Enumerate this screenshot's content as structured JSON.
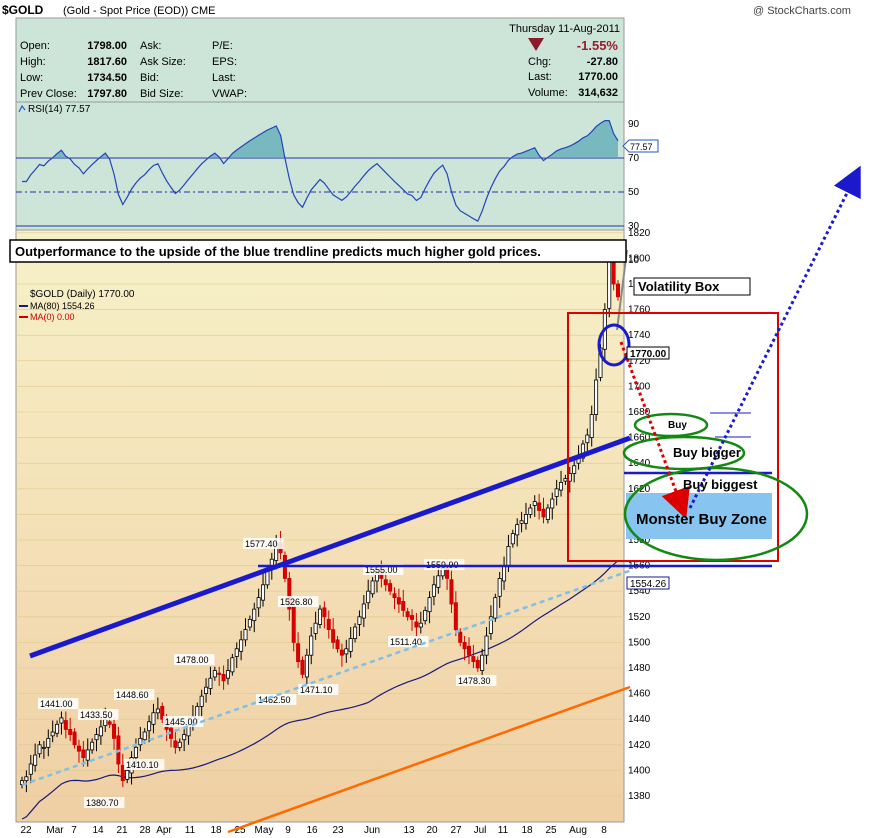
{
  "header": {
    "symbol": "$GOLD",
    "description": "(Gold - Spot Price (EOD))",
    "exchange": "CME",
    "brand": "@ StockCharts.com",
    "date": "Thursday  11-Aug-2011",
    "change_pct": "-1.55%",
    "chg_label": "Chg:",
    "chg_value": "-27.80",
    "last_label": "Last:",
    "last_value": "1770.00",
    "volume_label": "Volume:",
    "volume_value": "314,632"
  },
  "quote": [
    {
      "label": "Open:",
      "value": "1798.00"
    },
    {
      "label": "High:",
      "value": "1817.60"
    },
    {
      "label": "Low:",
      "value": "1734.50"
    },
    {
      "label": "Prev Close:",
      "value": "1797.80"
    }
  ],
  "quote_mid": [
    "Ask:",
    "Ask Size:",
    "Bid:",
    "Bid Size:"
  ],
  "quote_right": [
    "P/E:",
    "EPS:",
    "Last:",
    "VWAP:"
  ],
  "rsi": {
    "label": "RSI(14) 77.57",
    "value_tag": "77.57",
    "ticks": [
      "90",
      "70",
      "50",
      "30",
      "10"
    ]
  },
  "price_legend": {
    "main": "$GOLD (Daily) 1770.00",
    "ma80": "MA(80) 1554.26",
    "ma0": "MA(0) 0.00"
  },
  "price_ticks": [
    "1820",
    "1800",
    "1780",
    "1760",
    "1740",
    "1720",
    "1700",
    "1680",
    "1660",
    "1640",
    "1620",
    "1600",
    "1580",
    "1560",
    "1540",
    "1520",
    "1500",
    "1480",
    "1460",
    "1440",
    "1420",
    "1400",
    "1380"
  ],
  "x_labels": [
    "22",
    "Mar",
    "7",
    "14",
    "21",
    "28",
    "Apr",
    "11",
    "18",
    "25",
    "May",
    "9",
    "16",
    "23",
    "Jun",
    "13",
    "20",
    "27",
    "Jul",
    "11",
    "18",
    "25",
    "Aug",
    "8"
  ],
  "annotations": {
    "headline": "Outperformance to the upside of the blue trendline predicts much higher gold prices.",
    "volatility_box": "Volatility Box",
    "buy": "Buy",
    "buy_bigger": "Buy bigger",
    "buy_biggest": "Buy biggest",
    "monster": "Monster Buy Zone",
    "last_price_tag": "1770.00",
    "ma_tag": "1554.26"
  },
  "chart_data": {
    "type": "candlestick",
    "title": "$GOLD (Gold - Spot Price (EOD))",
    "ylim": [
      1370,
      1830
    ],
    "price_labels": [
      {
        "text": "1441.00",
        "value": 1441.0
      },
      {
        "text": "1433.50",
        "value": 1433.5
      },
      {
        "text": "1448.60",
        "value": 1448.6
      },
      {
        "text": "1380.70",
        "value": 1380.7
      },
      {
        "text": "1410.10",
        "value": 1410.1
      },
      {
        "text": "1445.00",
        "value": 1445.0
      },
      {
        "text": "1478.00",
        "value": 1478.0
      },
      {
        "text": "1577.40",
        "value": 1577.4
      },
      {
        "text": "1526.80",
        "value": 1526.8
      },
      {
        "text": "1462.50",
        "value": 1462.5
      },
      {
        "text": "1471.10",
        "value": 1471.1
      },
      {
        "text": "1555.00",
        "value": 1555.0
      },
      {
        "text": "1511.40",
        "value": 1511.4
      },
      {
        "text": "1559.90",
        "value": 1559.9
      },
      {
        "text": "1478.30",
        "value": 1478.3
      }
    ],
    "series": [
      {
        "name": "MA(80)",
        "last": 1554.26
      },
      {
        "name": "RSI(14)",
        "last": 77.57
      }
    ],
    "closes": [
      1392,
      1395,
      1405,
      1412,
      1420,
      1418,
      1425,
      1430,
      1436,
      1441,
      1432,
      1428,
      1420,
      1415,
      1410,
      1416,
      1422,
      1428,
      1434,
      1440,
      1436,
      1425,
      1405,
      1392,
      1400,
      1410,
      1418,
      1425,
      1430,
      1438,
      1445,
      1448,
      1440,
      1432,
      1425,
      1418,
      1422,
      1428,
      1435,
      1442,
      1450,
      1458,
      1465,
      1472,
      1478,
      1475,
      1470,
      1478,
      1488,
      1495,
      1502,
      1510,
      1518,
      1526,
      1535,
      1545,
      1556,
      1565,
      1577,
      1570,
      1550,
      1526,
      1500,
      1485,
      1475,
      1490,
      1505,
      1515,
      1526,
      1520,
      1510,
      1500,
      1495,
      1490,
      1495,
      1503,
      1512,
      1520,
      1530,
      1540,
      1548,
      1555,
      1550,
      1545,
      1540,
      1535,
      1530,
      1525,
      1520,
      1518,
      1512,
      1515,
      1525,
      1535,
      1545,
      1552,
      1558,
      1550,
      1530,
      1510,
      1500,
      1495,
      1490,
      1485,
      1480,
      1490,
      1505,
      1520,
      1535,
      1550,
      1560,
      1575,
      1585,
      1592,
      1595,
      1600,
      1605,
      1610,
      1603,
      1598,
      1605,
      1612,
      1620,
      1625,
      1628,
      1632,
      1638,
      1645,
      1655,
      1662,
      1678,
      1705,
      1730,
      1760,
      1800,
      1780,
      1770
    ]
  }
}
